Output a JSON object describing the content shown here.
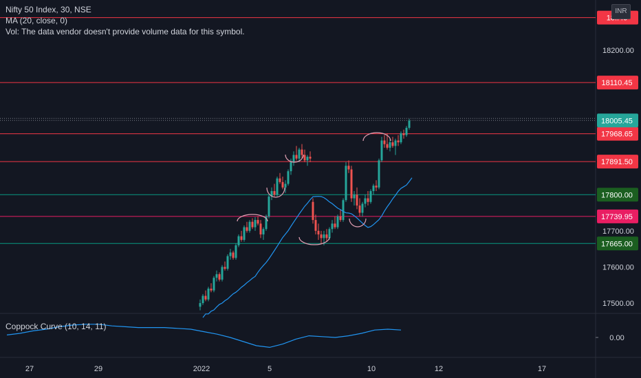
{
  "legend": {
    "symbol": "Nifty 50 Index, 30, NSE",
    "ma": "MA (20, close, 0)",
    "vol": "Vol: The data vendor doesn't provide volume data for this symbol."
  },
  "indicator": {
    "label": "Coppock Curve (10, 14, 11)"
  },
  "currency": "INR",
  "colors": {
    "background": "#131722",
    "up_candle": "#26a69a",
    "down_candle": "#ef5350",
    "ma_line": "#2196f3",
    "red_level": "#f23645",
    "green_level": "#089981",
    "pink_level": "#e91e63",
    "last_price": "#26a69a",
    "pattern_arc": "#e1a0b4"
  },
  "chart_data": {
    "type": "candlestick",
    "symbol": "Nifty 50 Index",
    "interval": "30",
    "exchange": "NSE",
    "y_axis_ticks": [
      "18200.00",
      "17700.00",
      "17600.00",
      "17500.00"
    ],
    "x_axis_ticks": [
      "27",
      "29",
      "2022",
      "5",
      "10",
      "12",
      "17"
    ],
    "ylim": [
      17480,
      18300
    ],
    "horizontal_levels": [
      {
        "label": "18..40",
        "value": 18290,
        "color": "red"
      },
      {
        "label": "18110.45",
        "value": 18110.45,
        "color": "red"
      },
      {
        "label": "17968.65",
        "value": 17968.65,
        "color": "red"
      },
      {
        "label": "17891.50",
        "value": 17891.5,
        "color": "red"
      },
      {
        "label": "17800.00",
        "value": 17800.0,
        "color": "green"
      },
      {
        "label": "17739.95",
        "value": 17739.95,
        "color": "pink"
      },
      {
        "label": "17665.00",
        "value": 17665.0,
        "color": "green"
      }
    ],
    "last_price": {
      "label": "18005.45",
      "value": 18005.45
    },
    "ohlc": [
      [
        17490,
        17510,
        17480,
        17500
      ],
      [
        17500,
        17525,
        17495,
        17520
      ],
      [
        17520,
        17535,
        17505,
        17510
      ],
      [
        17510,
        17545,
        17505,
        17540
      ],
      [
        17540,
        17555,
        17530,
        17535
      ],
      [
        17535,
        17575,
        17530,
        17570
      ],
      [
        17570,
        17590,
        17560,
        17580
      ],
      [
        17580,
        17585,
        17560,
        17565
      ],
      [
        17565,
        17605,
        17560,
        17600
      ],
      [
        17600,
        17615,
        17590,
        17595
      ],
      [
        17595,
        17635,
        17590,
        17630
      ],
      [
        17630,
        17650,
        17620,
        17640
      ],
      [
        17640,
        17645,
        17620,
        17625
      ],
      [
        17625,
        17665,
        17620,
        17660
      ],
      [
        17660,
        17690,
        17655,
        17685
      ],
      [
        17685,
        17700,
        17670,
        17675
      ],
      [
        17675,
        17715,
        17670,
        17710
      ],
      [
        17710,
        17725,
        17695,
        17700
      ],
      [
        17700,
        17730,
        17695,
        17725
      ],
      [
        17725,
        17735,
        17705,
        17710
      ],
      [
        17710,
        17738,
        17700,
        17730
      ],
      [
        17730,
        17740,
        17715,
        17720
      ],
      [
        17720,
        17730,
        17680,
        17690
      ],
      [
        17690,
        17710,
        17675,
        17705
      ],
      [
        17705,
        17745,
        17700,
        17740
      ],
      [
        17740,
        17800,
        17735,
        17795
      ],
      [
        17795,
        17820,
        17785,
        17810
      ],
      [
        17810,
        17830,
        17795,
        17800
      ],
      [
        17800,
        17850,
        17795,
        17845
      ],
      [
        17845,
        17860,
        17830,
        17835
      ],
      [
        17835,
        17850,
        17815,
        17820
      ],
      [
        17820,
        17840,
        17805,
        17830
      ],
      [
        17830,
        17870,
        17825,
        17865
      ],
      [
        17865,
        17900,
        17855,
        17890
      ],
      [
        17890,
        17920,
        17880,
        17910
      ],
      [
        17910,
        17935,
        17895,
        17900
      ],
      [
        17900,
        17930,
        17890,
        17925
      ],
      [
        17925,
        17940,
        17900,
        17910
      ],
      [
        17910,
        17925,
        17890,
        17895
      ],
      [
        17895,
        17910,
        17880,
        17905
      ],
      [
        17905,
        17920,
        17890,
        17900
      ],
      [
        17780,
        17790,
        17720,
        17730
      ],
      [
        17730,
        17745,
        17690,
        17700
      ],
      [
        17700,
        17720,
        17675,
        17690
      ],
      [
        17690,
        17700,
        17665,
        17680
      ],
      [
        17680,
        17700,
        17660,
        17690
      ],
      [
        17690,
        17705,
        17670,
        17680
      ],
      [
        17680,
        17710,
        17675,
        17705
      ],
      [
        17705,
        17730,
        17695,
        17720
      ],
      [
        17720,
        17740,
        17705,
        17710
      ],
      [
        17710,
        17745,
        17705,
        17740
      ],
      [
        17740,
        17760,
        17725,
        17730
      ],
      [
        17730,
        17790,
        17725,
        17785
      ],
      [
        17785,
        17890,
        17780,
        17880
      ],
      [
        17880,
        17895,
        17860,
        17870
      ],
      [
        17870,
        17880,
        17780,
        17790
      ],
      [
        17790,
        17810,
        17770,
        17800
      ],
      [
        17800,
        17820,
        17760,
        17770
      ],
      [
        17770,
        17790,
        17740,
        17750
      ],
      [
        17750,
        17780,
        17740,
        17775
      ],
      [
        17775,
        17800,
        17765,
        17790
      ],
      [
        17790,
        17810,
        17770,
        17780
      ],
      [
        17780,
        17815,
        17775,
        17810
      ],
      [
        17810,
        17830,
        17800,
        17825
      ],
      [
        17825,
        17840,
        17810,
        17820
      ],
      [
        17820,
        17900,
        17815,
        17895
      ],
      [
        17895,
        17960,
        17890,
        17950
      ],
      [
        17950,
        17965,
        17930,
        17940
      ],
      [
        17940,
        17970,
        17925,
        17930
      ],
      [
        17930,
        17955,
        17920,
        17945
      ],
      [
        17945,
        17960,
        17930,
        17935
      ],
      [
        17935,
        17955,
        17910,
        17950
      ],
      [
        17950,
        17965,
        17935,
        17945
      ],
      [
        17945,
        17975,
        17940,
        17970
      ],
      [
        17970,
        17980,
        17955,
        17965
      ],
      [
        17965,
        17990,
        17960,
        17985
      ],
      [
        17985,
        18010,
        17980,
        18005
      ]
    ],
    "coppock": [
      [
        0,
        0.03
      ],
      [
        1,
        0.05
      ],
      [
        2,
        0.08
      ],
      [
        3,
        0.1
      ],
      [
        4,
        0.13
      ],
      [
        5,
        0.15
      ],
      [
        6,
        0.16
      ],
      [
        7,
        0.16
      ],
      [
        8,
        0.14
      ],
      [
        9,
        0.13
      ],
      [
        10,
        0.12
      ],
      [
        11,
        0.12
      ],
      [
        12,
        0.12
      ],
      [
        13,
        0.11
      ],
      [
        14,
        0.1
      ],
      [
        15,
        0.07
      ],
      [
        16,
        0.04
      ],
      [
        17,
        0.0
      ],
      [
        18,
        -0.05
      ],
      [
        19,
        -0.1
      ],
      [
        20,
        -0.12
      ],
      [
        21,
        -0.08
      ],
      [
        22,
        -0.02
      ],
      [
        23,
        0.02
      ],
      [
        24,
        0.01
      ],
      [
        25,
        0.0
      ],
      [
        26,
        0.02
      ],
      [
        27,
        0.05
      ],
      [
        28,
        0.09
      ],
      [
        29,
        0.1
      ],
      [
        30,
        0.09
      ]
    ]
  }
}
